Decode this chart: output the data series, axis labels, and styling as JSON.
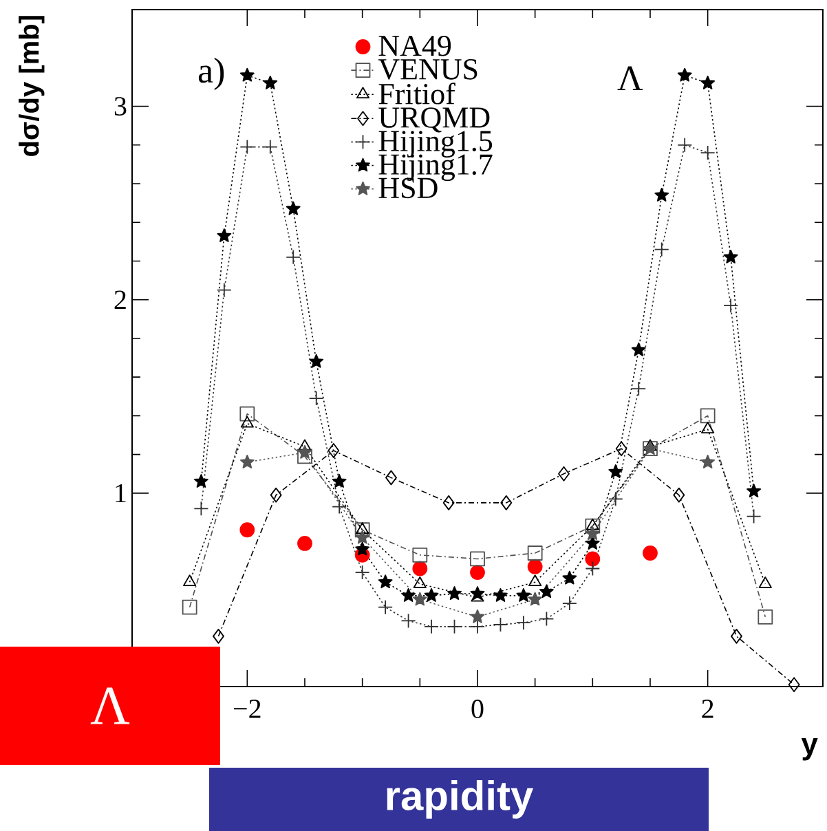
{
  "chart_data": {
    "type": "line",
    "xlabel": "y",
    "ylabel": "dσ/dy [mb]",
    "annotations": [
      "a)",
      "Λ",
      "Λ",
      "rapidity"
    ],
    "xlim": [
      -3,
      3
    ],
    "ylim": [
      0,
      3.5
    ],
    "xticks": [
      {
        "value": -2,
        "label": "−2"
      },
      0,
      2
    ],
    "yticks": [
      1,
      2,
      3
    ],
    "legend": "top",
    "grid": false,
    "series": [
      {
        "name": "NA49",
        "type": "scatter",
        "marker": "circle",
        "color": "#ff0000",
        "x": [
          -2,
          -1.5,
          -1,
          -0.5,
          0,
          0.5,
          1,
          1.5
        ],
        "values": [
          0.81,
          0.74,
          0.68,
          0.61,
          0.59,
          0.62,
          0.66,
          0.69
        ]
      },
      {
        "name": "VENUS",
        "marker": "square",
        "line_style": "dashed",
        "color": "#505050",
        "x": [
          -2.5,
          -2,
          -1.5,
          -1,
          -0.5,
          0,
          0.5,
          1,
          1.5,
          2,
          2.5
        ],
        "values": [
          0.41,
          1.41,
          1.19,
          0.81,
          0.68,
          0.66,
          0.69,
          0.83,
          1.23,
          1.4,
          0.36
        ]
      },
      {
        "name": "Fritiof",
        "marker": "triangle",
        "line_style": "dotted",
        "color": "#000000",
        "x": [
          -2.5,
          -2,
          -1.5,
          -1,
          -0.5,
          0,
          0.5,
          1,
          1.5,
          2,
          2.5
        ],
        "values": [
          0.54,
          1.36,
          1.24,
          0.81,
          0.53,
          0.46,
          0.54,
          0.83,
          1.24,
          1.33,
          0.53
        ]
      },
      {
        "name": "URQMD",
        "marker": "diamond",
        "line_style": "dashed",
        "color": "#000000",
        "x": [
          -2.25,
          -1.75,
          -1.25,
          -0.75,
          -0.25,
          0.25,
          0.75,
          1.25,
          1.75,
          2.25,
          2.75
        ],
        "values": [
          0.26,
          0.99,
          1.22,
          1.08,
          0.95,
          0.95,
          1.1,
          1.23,
          0.99,
          0.26,
          0.01
        ]
      },
      {
        "name": "Hijing1.5",
        "marker": "cross",
        "line_style": "dotted",
        "color": "#303030",
        "x": [
          -2.4,
          -2.2,
          -2,
          -1.8,
          -1.6,
          -1.4,
          -1.2,
          -1,
          -0.8,
          -0.6,
          -0.4,
          -0.2,
          0,
          0.2,
          0.4,
          0.6,
          0.8,
          1,
          1.2,
          1.4,
          1.6,
          1.8,
          2,
          2.2,
          2.4
        ],
        "values": [
          0.92,
          2.05,
          2.79,
          2.79,
          2.22,
          1.49,
          0.93,
          0.59,
          0.41,
          0.34,
          0.31,
          0.31,
          0.31,
          0.32,
          0.33,
          0.35,
          0.43,
          0.61,
          0.97,
          1.54,
          2.26,
          2.8,
          2.76,
          1.97,
          0.88
        ]
      },
      {
        "name": "Hijing1.7",
        "marker": "star",
        "line_style": "dotted",
        "color": "#000000",
        "x": [
          -2.4,
          -2.2,
          -2,
          -1.8,
          -1.6,
          -1.4,
          -1.2,
          -1,
          -0.8,
          -0.6,
          -0.4,
          -0.2,
          0,
          0.2,
          0.4,
          0.6,
          0.8,
          1,
          1.2,
          1.4,
          1.6,
          1.8,
          2,
          2.2,
          2.4
        ],
        "values": [
          1.06,
          2.33,
          3.16,
          3.12,
          2.47,
          1.68,
          1.06,
          0.71,
          0.54,
          0.47,
          0.47,
          0.48,
          0.48,
          0.47,
          0.47,
          0.49,
          0.56,
          0.74,
          1.11,
          1.74,
          2.54,
          3.16,
          3.12,
          2.22,
          1.01
        ]
      },
      {
        "name": "HSD",
        "marker": "star",
        "line_style": "dotted",
        "color": "#555555",
        "x": [
          -2,
          -1.5,
          -1,
          -0.5,
          0,
          0.5,
          1,
          1.5,
          2
        ],
        "values": [
          1.16,
          1.21,
          0.77,
          0.45,
          0.36,
          0.45,
          0.79,
          1.23,
          1.16
        ]
      }
    ]
  }
}
